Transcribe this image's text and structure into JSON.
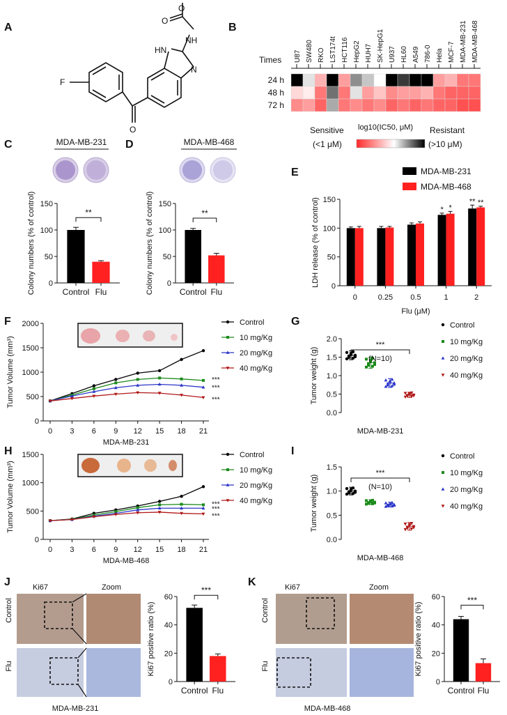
{
  "panels": {
    "A": "A",
    "B": "B",
    "C": "C",
    "D": "D",
    "E": "E",
    "F": "F",
    "G": "G",
    "H": "H",
    "I": "I",
    "J": "J",
    "K": "K"
  },
  "heatmap": {
    "cell_lines": [
      "U87",
      "SW480",
      "RKO",
      "LST174t",
      "HCT116",
      "HepG2",
      "HUH7",
      "SK-HepG1",
      "U937",
      "HL60",
      "A549",
      "786-0",
      "Hela",
      "MCF-7",
      "MDA-MB-231",
      "MDA-MB-468"
    ],
    "times_label": "Times",
    "times": [
      "24 h",
      "48 h",
      "72 h"
    ],
    "log_ic50": [
      [
        1.0,
        0.2,
        -0.3,
        1.0,
        -0.4,
        0.5,
        0.3,
        0.1,
        1.0,
        0.8,
        1.0,
        1.0,
        -0.4,
        -0.3,
        -0.6,
        -0.6
      ],
      [
        -0.1,
        0.0,
        -0.6,
        0.6,
        -0.6,
        0.2,
        -0.4,
        -0.2,
        -0.5,
        -0.4,
        -0.4,
        -0.3,
        -0.6,
        -0.7,
        -0.7,
        -0.7
      ],
      [
        -0.5,
        -0.4,
        -0.7,
        0.4,
        -0.6,
        -0.5,
        -0.6,
        -0.5,
        -0.7,
        -0.6,
        -0.7,
        -0.6,
        -0.7,
        -0.7,
        -0.8,
        -0.8
      ]
    ],
    "legend_title": "log10(IC50, μM)",
    "sensitive": "Sensitive",
    "sensitive_sub": "(<1 μM)",
    "resistant": "Resistant",
    "resistant_sub": "(>10 μM)"
  },
  "panelC": {
    "cell": "MDA-MB-231",
    "ylabel": "Colony numbers (% of control)",
    "sig": "**"
  },
  "panelD": {
    "cell": "MDA-MB-468",
    "ylabel": "Colony numbers (% of control)",
    "sig": "**"
  },
  "panelE": {
    "ylabel": "LDH release (% of control)",
    "xlabel": "Flu (μM)"
  },
  "panelF": {
    "ylabel": "Tumor Volume (mm³)",
    "xlabel": "MDA-MB-231"
  },
  "panelG": {
    "ylabel": "Tumor weight (g)",
    "xlabel": "MDA-MB-231",
    "n_note": "(N=10)",
    "sig": "***"
  },
  "panelH": {
    "ylabel": "Tumor Volume (mm³)",
    "xlabel": "MDA-MB-468"
  },
  "panelI": {
    "ylabel": "Tumor weight (g)",
    "xlabel": "MDA-MB-468",
    "n_note": "(N=10)",
    "sig": "***"
  },
  "panelJ": {
    "cell": "MDA-MB-231",
    "col1": "Ki67",
    "col2": "Zoom",
    "row1": "Control",
    "row2": "Flu",
    "ylabel": "Ki67 positive ratio (%)",
    "sig": "***"
  },
  "panelK": {
    "cell": "MDA-MB-468",
    "col1": "Ki67",
    "col2": "Zoom",
    "row1": "Control",
    "row2": "Flu",
    "ylabel": "Ki67 positive ratio (%)",
    "sig": "***"
  },
  "colors": {
    "black": "#000000",
    "red": "#ff2020",
    "green": "#1a8a1a",
    "blue": "#2a35c8",
    "darkred": "#b01818"
  },
  "chart_data": [
    {
      "id": "C",
      "type": "bar",
      "categories": [
        "Control",
        "Flu"
      ],
      "values": [
        100,
        40
      ],
      "errors": [
        5,
        2
      ],
      "ylim": [
        0,
        150
      ],
      "yticks": [
        0,
        50,
        100,
        150
      ],
      "ylabel": "Colony numbers (% of control)",
      "title": "MDA-MB-231"
    },
    {
      "id": "D",
      "type": "bar",
      "categories": [
        "Control",
        "Flu"
      ],
      "values": [
        100,
        52
      ],
      "errors": [
        3,
        4
      ],
      "ylim": [
        0,
        150
      ],
      "yticks": [
        0,
        50,
        100,
        150
      ],
      "ylabel": "Colony numbers (% of control)",
      "title": "MDA-MB-468"
    },
    {
      "id": "E",
      "type": "bar",
      "categories": [
        "0",
        "0.25",
        "0.5",
        "1",
        "2"
      ],
      "series": [
        {
          "name": "MDA-MB-231",
          "values": [
            100,
            100,
            106,
            123,
            134
          ],
          "errors": [
            2,
            3,
            3,
            3,
            6
          ]
        },
        {
          "name": "MDA-MB-468",
          "values": [
            100,
            101,
            108,
            125,
            136
          ],
          "errors": [
            3,
            2,
            3,
            4,
            2
          ]
        }
      ],
      "sig": [
        "",
        "",
        "",
        "*",
        "**"
      ],
      "ylim": [
        0,
        150
      ],
      "yticks": [
        0,
        50,
        100,
        150
      ],
      "ylabel": "LDH release (% of control)",
      "xlabel": "Flu (μM)",
      "legend": "top-right"
    },
    {
      "id": "F",
      "type": "line",
      "x": [
        0,
        3,
        6,
        9,
        12,
        15,
        18,
        21
      ],
      "series": [
        {
          "name": "Control",
          "values": [
            410,
            560,
            720,
            850,
            980,
            1030,
            1260,
            1440
          ]
        },
        {
          "name": "10 mg/Kg",
          "values": [
            410,
            530,
            660,
            780,
            850,
            880,
            860,
            830
          ]
        },
        {
          "name": "20 mg/Kg",
          "values": [
            410,
            510,
            600,
            680,
            730,
            750,
            730,
            690
          ]
        },
        {
          "name": "40 mg/Kg",
          "values": [
            410,
            460,
            510,
            550,
            580,
            570,
            530,
            480
          ]
        }
      ],
      "sig": [
        "***",
        "***",
        "***"
      ],
      "ylim": [
        0,
        2000
      ],
      "yticks": [
        0,
        500,
        1000,
        1500,
        2000
      ],
      "xlabel": "MDA-MB-231",
      "ylabel": "Tumor Volume (mm³)"
    },
    {
      "id": "G",
      "type": "scatter",
      "categories": [
        "Control",
        "10 mg/Kg",
        "20 mg/Kg",
        "40 mg/Kg"
      ],
      "means": [
        1.55,
        1.35,
        0.8,
        0.48
      ],
      "sds": [
        0.12,
        0.15,
        0.12,
        0.07
      ],
      "ylim": [
        0,
        2.0
      ],
      "yticks": [
        0,
        0.5,
        1.0,
        1.5,
        2.0
      ],
      "ylabel": "Tumor weight (g)",
      "xlabel": "MDA-MB-231"
    },
    {
      "id": "H",
      "type": "line",
      "x": [
        0,
        3,
        6,
        9,
        12,
        15,
        18,
        21
      ],
      "series": [
        {
          "name": "Control",
          "values": [
            330,
            360,
            460,
            520,
            590,
            670,
            760,
            930
          ]
        },
        {
          "name": "10 mg/Kg",
          "values": [
            330,
            355,
            430,
            490,
            560,
            610,
            620,
            610
          ]
        },
        {
          "name": "20 mg/Kg",
          "values": [
            330,
            350,
            410,
            460,
            520,
            550,
            550,
            550
          ]
        },
        {
          "name": "40 mg/Kg",
          "values": [
            330,
            350,
            400,
            440,
            470,
            480,
            460,
            450
          ]
        }
      ],
      "sig": [
        "***",
        "***",
        "***"
      ],
      "ylim": [
        0,
        1500
      ],
      "yticks": [
        0,
        500,
        1000,
        1500
      ],
      "xlabel": "MDA-MB-468",
      "ylabel": "Tumor Volume (mm³)"
    },
    {
      "id": "I",
      "type": "scatter",
      "categories": [
        "Control",
        "10 mg/Kg",
        "20 mg/Kg",
        "40 mg/Kg"
      ],
      "means": [
        1.0,
        0.77,
        0.72,
        0.27
      ],
      "sds": [
        0.08,
        0.05,
        0.05,
        0.08
      ],
      "ylim": [
        0,
        1.5
      ],
      "yticks": [
        0,
        0.5,
        1.0,
        1.5
      ],
      "ylabel": "Tumor weight (g)",
      "xlabel": "MDA-MB-468"
    },
    {
      "id": "J",
      "type": "bar",
      "categories": [
        "Control",
        "Flu"
      ],
      "values": [
        52,
        18
      ],
      "errors": [
        2,
        1.5
      ],
      "ylim": [
        0,
        60
      ],
      "yticks": [
        0,
        20,
        40,
        60
      ],
      "ylabel": "Ki67 positive ratio (%)",
      "title": "MDA-MB-231"
    },
    {
      "id": "K",
      "type": "bar",
      "categories": [
        "Control",
        "Flu"
      ],
      "values": [
        44,
        13
      ],
      "errors": [
        2,
        3
      ],
      "ylim": [
        0,
        60
      ],
      "yticks": [
        0,
        20,
        40,
        60
      ],
      "ylabel": "Ki67 positive ratio (%)",
      "title": "MDA-MB-468"
    }
  ]
}
